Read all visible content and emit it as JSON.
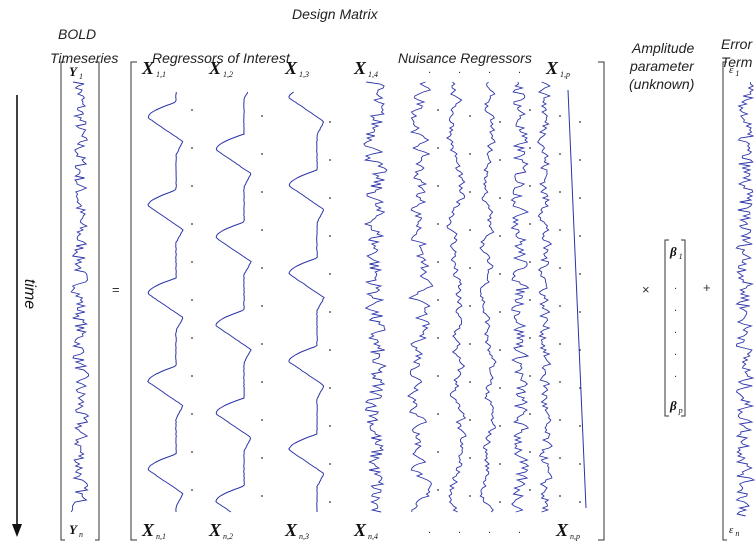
{
  "headers": {
    "design_matrix": "Design Matrix",
    "bold_line1": "BOLD",
    "bold_line2": "Timeseries",
    "regressors_interest": "Regressors of Interest",
    "nuisance": "Nuisance Regressors",
    "amp_line1": "Amplitude",
    "amp_line2": "parameter",
    "amp_line3": "(unknown)",
    "err_line1": "Error",
    "err_line2": "Term"
  },
  "time_label": "time",
  "operators": {
    "equals": "=",
    "times": "×",
    "plus": "+"
  },
  "bold": {
    "top": {
      "sym": "Y",
      "sub": "1"
    },
    "bottom": {
      "sym": "Y",
      "sub": "n"
    }
  },
  "design": {
    "top": [
      {
        "sym": "X",
        "sub": "1,1"
      },
      {
        "sym": "X",
        "sub": "1,2"
      },
      {
        "sym": "X",
        "sub": "1,3"
      },
      {
        "sym": "X",
        "sub": "1,4"
      },
      {
        "sym": "X",
        "sub": "1,p"
      }
    ],
    "bottom": [
      {
        "sym": "X",
        "sub": "n,1"
      },
      {
        "sym": "X",
        "sub": "n,2"
      },
      {
        "sym": "X",
        "sub": "n,3"
      },
      {
        "sym": "X",
        "sub": "n,4"
      },
      {
        "sym": "X",
        "sub": "n,p"
      }
    ],
    "dots": "."
  },
  "beta": {
    "top": {
      "sym": "β",
      "sub": "1"
    },
    "bottom": {
      "sym": "β",
      "sub": "p"
    }
  },
  "error": {
    "top": {
      "sym": "ε",
      "sub": "1"
    },
    "bottom": {
      "sym": "ε",
      "sub": "n"
    }
  },
  "colors": {
    "trace": "#2b33a8",
    "bracket": "#333333",
    "text": "#222222"
  }
}
